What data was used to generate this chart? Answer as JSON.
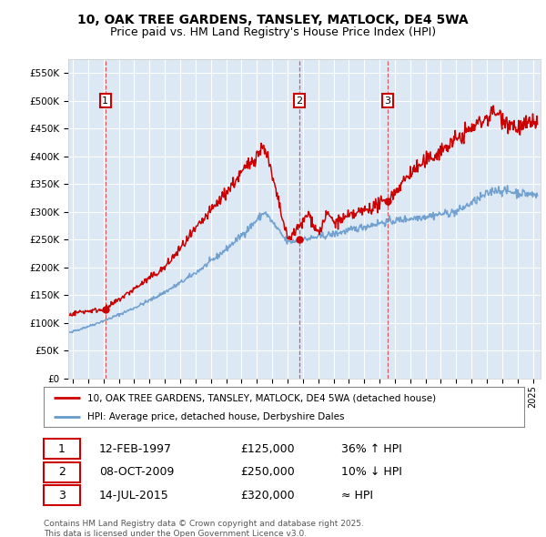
{
  "title_line1": "10, OAK TREE GARDENS, TANSLEY, MATLOCK, DE4 5WA",
  "title_line2": "Price paid vs. HM Land Registry's House Price Index (HPI)",
  "fig_bg_color": "#ffffff",
  "plot_bg_color": "#dce9f5",
  "red_line_label": "10, OAK TREE GARDENS, TANSLEY, MATLOCK, DE4 5WA (detached house)",
  "blue_line_label": "HPI: Average price, detached house, Derbyshire Dales",
  "sale_points": [
    {
      "num": 1,
      "date": "12-FEB-1997",
      "price": "£125,000",
      "note": "36% ↑ HPI",
      "x_year": 1997.12,
      "y": 125000
    },
    {
      "num": 2,
      "date": "08-OCT-2009",
      "price": "£250,000",
      "note": "10% ↓ HPI",
      "x_year": 2009.77,
      "y": 250000
    },
    {
      "num": 3,
      "date": "14-JUL-2015",
      "price": "£320,000",
      "note": "≈ HPI",
      "x_year": 2015.54,
      "y": 320000
    }
  ],
  "vline_color": "#cc0000",
  "ylim": [
    0,
    575000
  ],
  "xlim_start": 1994.7,
  "xlim_end": 2025.5,
  "yticks": [
    0,
    50000,
    100000,
    150000,
    200000,
    250000,
    300000,
    350000,
    400000,
    450000,
    500000,
    550000
  ],
  "ytick_labels": [
    "£0",
    "£50K",
    "£100K",
    "£150K",
    "£200K",
    "£250K",
    "£300K",
    "£350K",
    "£400K",
    "£450K",
    "£500K",
    "£550K"
  ],
  "xtick_years": [
    1995,
    1996,
    1997,
    1998,
    1999,
    2000,
    2001,
    2002,
    2003,
    2004,
    2005,
    2006,
    2007,
    2008,
    2009,
    2010,
    2011,
    2012,
    2013,
    2014,
    2015,
    2016,
    2017,
    2018,
    2019,
    2020,
    2021,
    2022,
    2023,
    2024,
    2025
  ],
  "footer_text": "Contains HM Land Registry data © Crown copyright and database right 2025.\nThis data is licensed under the Open Government Licence v3.0.",
  "red_color": "#cc0000",
  "blue_color": "#6699cc",
  "grid_color": "#ffffff"
}
